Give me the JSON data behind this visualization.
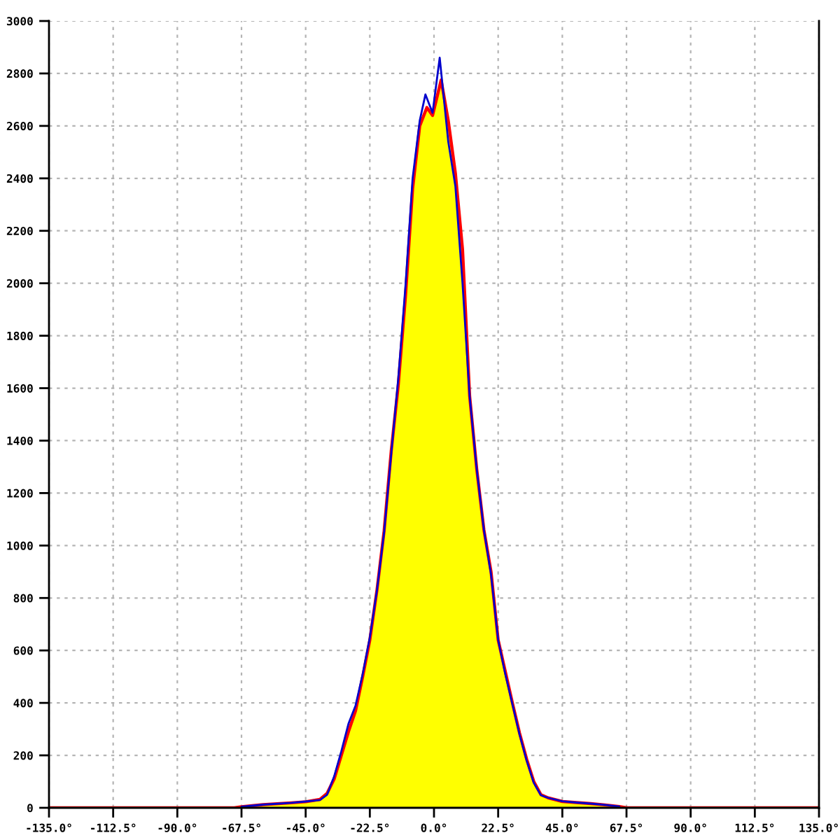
{
  "chart_data": {
    "type": "line",
    "xlim": [
      -135,
      135
    ],
    "xticks": [
      {
        "value": -135,
        "label": "-135.0°"
      },
      {
        "value": -112.5,
        "label": "-112.5°"
      },
      {
        "value": -90,
        "label": "-90.0°"
      },
      {
        "value": -67.5,
        "label": "-67.5°"
      },
      {
        "value": -45,
        "label": "-45.0°"
      },
      {
        "value": -22.5,
        "label": "-22.5°"
      },
      {
        "value": 0,
        "label": "0.0°"
      },
      {
        "value": 22.5,
        "label": "22.5°"
      },
      {
        "value": 45,
        "label": "45.0°"
      },
      {
        "value": 67.5,
        "label": "67.5°"
      },
      {
        "value": 90,
        "label": "90.0°"
      },
      {
        "value": 112.5,
        "label": "112.5°"
      },
      {
        "value": 135,
        "label": "135.0°"
      }
    ],
    "ylim": [
      0,
      3000
    ],
    "yticks": [
      0,
      200,
      400,
      600,
      800,
      1000,
      1200,
      1400,
      1600,
      1800,
      2000,
      2200,
      2400,
      2600,
      2800,
      3000
    ],
    "grid": true,
    "series": [
      {
        "color": "#0000cc",
        "x": [
          -67.5,
          -60,
          -50,
          -45,
          -40,
          -37.5,
          -35,
          -32.5,
          -30,
          -27.5,
          -25,
          -22.5,
          -20,
          -17.5,
          -15,
          -12.5,
          -10,
          -7.5,
          -5,
          -3,
          -0.5,
          2,
          5,
          7.5,
          10,
          12.5,
          15,
          17.5,
          20,
          22.5,
          25,
          27.5,
          30,
          32.5,
          35,
          37.5,
          40,
          45,
          50,
          55,
          60,
          65
        ],
        "values": [
          4,
          12,
          19,
          24,
          30,
          50,
          120,
          215,
          320,
          390,
          510,
          650,
          830,
          1050,
          1350,
          1640,
          1990,
          2400,
          2620,
          2720,
          2650,
          2860,
          2540,
          2370,
          2000,
          1570,
          1290,
          1060,
          890,
          640,
          510,
          395,
          280,
          180,
          95,
          48,
          38,
          25,
          20,
          16,
          11,
          5
        ]
      },
      {
        "type": "area",
        "color": "#ffff00",
        "x": [
          -135,
          -70,
          -67.5,
          -60,
          -50,
          -45,
          -40,
          -37.5,
          -35,
          -32.5,
          -30,
          -27.5,
          -25,
          -22.5,
          -20,
          -17.5,
          -15,
          -12.5,
          -10,
          -7.5,
          -5,
          -2.5,
          -0.5,
          2.5,
          5,
          7.5,
          10,
          12.5,
          15,
          17.5,
          20,
          22.5,
          25,
          27.5,
          30,
          32.5,
          35,
          37.5,
          40,
          45,
          50,
          55,
          60,
          65,
          67.5,
          135
        ],
        "values": [
          0,
          0,
          4,
          12,
          19,
          23,
          32,
          55,
          110,
          200,
          290,
          370,
          500,
          640,
          830,
          1055,
          1360,
          1615,
          1950,
          2360,
          2600,
          2670,
          2640,
          2775,
          2620,
          2420,
          2130,
          1570,
          1290,
          1060,
          900,
          640,
          520,
          400,
          285,
          185,
          100,
          50,
          38,
          24,
          20,
          16,
          11,
          5,
          0,
          0
        ]
      }
    ]
  }
}
